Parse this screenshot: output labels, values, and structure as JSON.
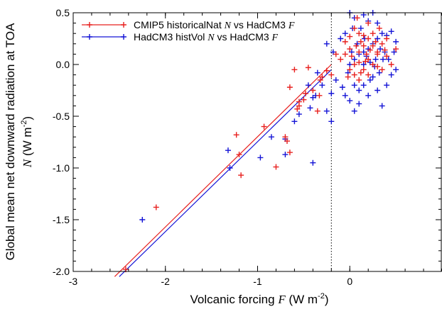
{
  "chart_data": {
    "type": "scatter",
    "xlabel": {
      "pre": "Volcanic forcing ",
      "var": "F",
      "unit": " (W m",
      "sup": "-2",
      "close": ")"
    },
    "ylabel": {
      "line1": "Global mean net downward radiation at TOA",
      "var": "N",
      "unit": " (W m",
      "sup": "-2",
      "close": ")"
    },
    "xlim": [
      -3.0,
      1.0
    ],
    "ylim": [
      -2.0,
      0.5
    ],
    "xticks": [
      -3,
      -2,
      -1,
      0
    ],
    "xtick_labels": [
      "-3",
      "-2",
      "-1",
      "0"
    ],
    "yticks": [
      -2.0,
      -1.5,
      -1.0,
      -0.5,
      0.0,
      0.5
    ],
    "ytick_labels": [
      "-2.0",
      "-1.5",
      "-1.0",
      "-0.5",
      "0.0",
      "0.5"
    ],
    "grid": false,
    "legend_position": "top-left",
    "threshold_line": {
      "x": -0.2,
      "style": "dotted"
    },
    "series": [
      {
        "name": {
          "pre": "CMIP5 historicalNat ",
          "v1": "N",
          "mid": " vs HadCM3 ",
          "v2": "F"
        },
        "color": "#e8201e",
        "fit_line": {
          "x": [
            -2.55,
            -0.2
          ],
          "y": [
            -2.05,
            0.0
          ]
        },
        "points": [
          [
            -2.43,
            -1.98
          ],
          [
            -2.1,
            -1.38
          ],
          [
            -1.2,
            -0.87
          ],
          [
            -1.18,
            -1.07
          ],
          [
            -1.23,
            -0.68
          ],
          [
            -0.93,
            -0.6
          ],
          [
            -0.8,
            -0.99
          ],
          [
            -0.65,
            -0.85
          ],
          [
            -0.7,
            -0.7
          ],
          [
            -0.68,
            -0.74
          ],
          [
            -0.55,
            -0.4
          ],
          [
            -0.57,
            -0.43
          ],
          [
            -0.4,
            -0.25
          ],
          [
            -0.5,
            -0.34
          ],
          [
            -0.33,
            -0.3
          ],
          [
            -0.32,
            -0.15
          ],
          [
            -0.25,
            -0.06
          ],
          [
            -0.45,
            -0.03
          ],
          [
            -0.6,
            -0.05
          ],
          [
            -0.48,
            -0.28
          ],
          [
            -0.65,
            -0.22
          ],
          [
            -0.3,
            -0.12
          ],
          [
            -0.2,
            -0.1
          ],
          [
            -0.55,
            -0.36
          ],
          [
            -0.35,
            -0.45
          ],
          [
            -0.15,
            0.1
          ],
          [
            -0.1,
            0.05
          ],
          [
            -0.05,
            0.22
          ],
          [
            0.0,
            0.27
          ],
          [
            0.05,
            0.35
          ],
          [
            0.1,
            0.3
          ],
          [
            0.15,
            0.28
          ],
          [
            0.2,
            0.25
          ],
          [
            0.25,
            0.18
          ],
          [
            0.3,
            0.12
          ],
          [
            0.35,
            0.2
          ],
          [
            0.4,
            0.08
          ],
          [
            0.05,
            0.0
          ],
          [
            0.1,
            0.02
          ],
          [
            0.15,
            -0.05
          ],
          [
            0.2,
            0.05
          ],
          [
            0.25,
            0.0
          ],
          [
            0.3,
            -0.02
          ],
          [
            0.05,
            -0.1
          ],
          [
            0.1,
            -0.15
          ],
          [
            0.0,
            -0.05
          ],
          [
            -0.05,
            0.1
          ],
          [
            0.0,
            0.15
          ],
          [
            0.2,
            0.4
          ],
          [
            0.25,
            0.3
          ],
          [
            0.1,
            0.12
          ],
          [
            0.15,
            0.18
          ],
          [
            0.3,
            0.1
          ],
          [
            0.18,
            0.1
          ],
          [
            0.4,
            0.25
          ],
          [
            0.35,
            -0.05
          ],
          [
            0.5,
            0.15
          ],
          [
            0.45,
            0.0
          ],
          [
            0.08,
            0.45
          ],
          [
            0.2,
            -0.1
          ],
          [
            0.12,
            -0.08
          ],
          [
            0.28,
            0.22
          ],
          [
            0.22,
            0.14
          ],
          [
            0.02,
            0.08
          ],
          [
            0.07,
            0.18
          ],
          [
            -0.02,
            -0.12
          ],
          [
            0.32,
            0.35
          ],
          [
            0.12,
            0.22
          ],
          [
            0.17,
            0.03
          ],
          [
            0.38,
            0.14
          ]
        ]
      },
      {
        "name": {
          "pre": "HadCM3 histVol ",
          "v1": "N",
          "mid": " vs HadCM3 ",
          "v2": "F"
        },
        "color": "#1414d6",
        "fit_line": {
          "x": [
            -2.5,
            -0.2
          ],
          "y": [
            -2.05,
            -0.05
          ]
        },
        "points": [
          [
            -2.25,
            -1.5
          ],
          [
            -1.3,
            -1.0
          ],
          [
            -1.32,
            -0.83
          ],
          [
            -0.97,
            -0.9
          ],
          [
            -0.7,
            -0.87
          ],
          [
            -0.4,
            -0.95
          ],
          [
            -0.85,
            -0.7
          ],
          [
            -0.7,
            -0.72
          ],
          [
            -0.6,
            -0.55
          ],
          [
            -0.55,
            -0.48
          ],
          [
            -0.43,
            -0.42
          ],
          [
            -0.37,
            -0.3
          ],
          [
            -0.45,
            -0.2
          ],
          [
            -0.35,
            -0.08
          ],
          [
            -0.25,
            -0.45
          ],
          [
            -0.2,
            -0.55
          ],
          [
            -0.4,
            -0.32
          ],
          [
            -0.3,
            -0.2
          ],
          [
            -0.2,
            -0.28
          ],
          [
            -0.05,
            -0.3
          ],
          [
            0.0,
            -0.35
          ],
          [
            0.05,
            -0.45
          ],
          [
            0.1,
            -0.38
          ],
          [
            0.15,
            -0.2
          ],
          [
            0.2,
            -0.3
          ],
          [
            0.25,
            -0.12
          ],
          [
            0.3,
            -0.25
          ],
          [
            0.35,
            -0.4
          ],
          [
            0.4,
            -0.2
          ],
          [
            0.45,
            -0.1
          ],
          [
            0.5,
            -0.05
          ],
          [
            0.0,
            0.0
          ],
          [
            0.05,
            0.05
          ],
          [
            0.1,
            0.1
          ],
          [
            0.15,
            0.12
          ],
          [
            0.2,
            0.15
          ],
          [
            0.25,
            0.2
          ],
          [
            0.3,
            0.25
          ],
          [
            0.35,
            0.3
          ],
          [
            0.4,
            0.28
          ],
          [
            0.45,
            0.32
          ],
          [
            0.5,
            0.22
          ],
          [
            0.05,
            0.45
          ],
          [
            0.15,
            0.48
          ],
          [
            0.2,
            0.42
          ],
          [
            0.25,
            0.5
          ],
          [
            0.3,
            0.4
          ],
          [
            -0.25,
            0.2
          ],
          [
            -0.05,
            0.3
          ],
          [
            -0.1,
            0.25
          ],
          [
            -0.02,
            -0.08
          ],
          [
            0.02,
            0.12
          ],
          [
            0.08,
            0.2
          ],
          [
            0.12,
            0.35
          ],
          [
            0.18,
            0.08
          ],
          [
            0.22,
            0.02
          ],
          [
            0.28,
            0.05
          ],
          [
            0.32,
            -0.08
          ],
          [
            0.38,
            0.12
          ],
          [
            0.42,
            0.05
          ],
          [
            -0.15,
            -0.15
          ],
          [
            -0.18,
            0.12
          ],
          [
            0.0,
            0.5
          ],
          [
            0.05,
            -0.2
          ],
          [
            0.1,
            -0.25
          ],
          [
            0.15,
            0.0
          ],
          [
            0.22,
            -0.15
          ],
          [
            0.27,
            -0.02
          ],
          [
            0.33,
            0.15
          ],
          [
            0.48,
            0.12
          ],
          [
            -0.08,
            -0.22
          ],
          [
            0.03,
            0.35
          ],
          [
            0.16,
            0.25
          ],
          [
            0.36,
            0.05
          ]
        ]
      }
    ]
  }
}
